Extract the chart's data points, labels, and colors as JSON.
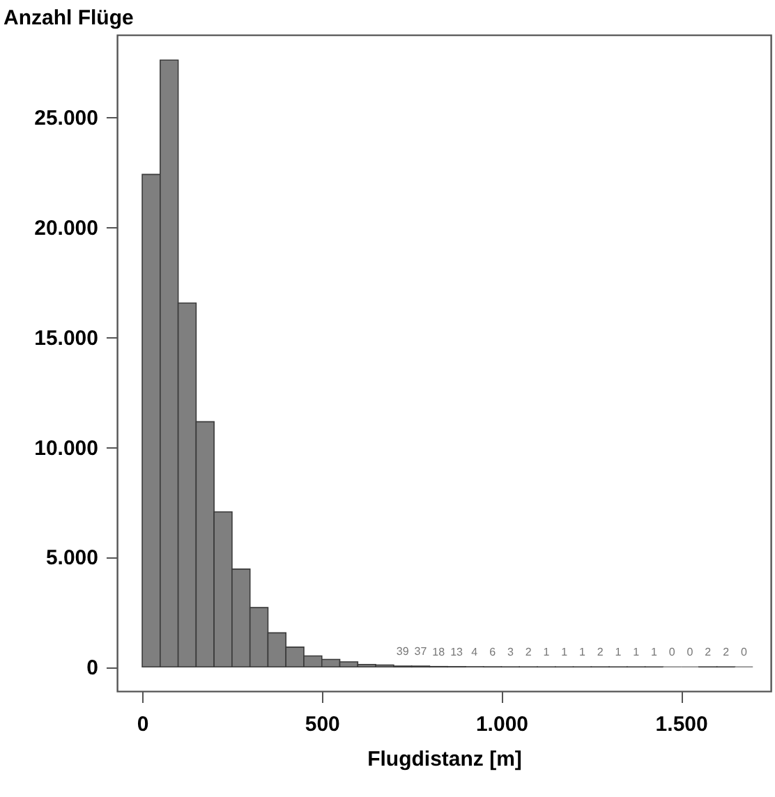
{
  "chart_data": {
    "type": "histogram",
    "xlabel": "Flugdistanz [m]",
    "ylabel": "Anzahl Flüge",
    "color": "#7f7f7f",
    "bins": [
      0,
      50,
      100,
      150,
      200,
      250,
      300,
      350,
      400,
      450,
      500,
      550,
      600,
      650,
      700,
      750,
      800,
      850,
      900,
      950,
      1000,
      1050,
      1100,
      1150,
      1200,
      1250,
      1300,
      1350,
      1400,
      1450,
      1500,
      1550,
      1600,
      1650,
      1700
    ],
    "values": [
      22400,
      27600,
      16550,
      11150,
      7050,
      4450,
      2700,
      1550,
      900,
      500,
      340,
      230,
      110,
      90,
      39,
      37,
      18,
      13,
      4,
      6,
      3,
      2,
      1,
      1,
      1,
      2,
      1,
      1,
      1,
      0,
      0,
      2,
      2,
      0
    ],
    "value_labels": [
      null,
      null,
      null,
      null,
      null,
      null,
      null,
      null,
      null,
      null,
      null,
      null,
      null,
      null,
      "39",
      "37",
      "18",
      "13",
      "4",
      "6",
      "3",
      "2",
      "1",
      "1",
      "1",
      "2",
      "1",
      "1",
      "1",
      "0",
      "0",
      "2",
      "2",
      "0"
    ],
    "xlim": [
      -70,
      1750
    ],
    "ylim": [
      -1100,
      28750
    ],
    "xticks": [
      0,
      500,
      {
        "value": 1000,
        "label": "1.000"
      },
      {
        "value": 1500,
        "label": "1.500"
      }
    ],
    "yticks": [
      0,
      {
        "value": 5000,
        "label": "5.000"
      },
      {
        "value": 10000,
        "label": "10.000"
      },
      {
        "value": 15000,
        "label": "15.000"
      },
      {
        "value": 20000,
        "label": "20.000"
      },
      {
        "value": 25000,
        "label": "25.000"
      }
    ]
  }
}
